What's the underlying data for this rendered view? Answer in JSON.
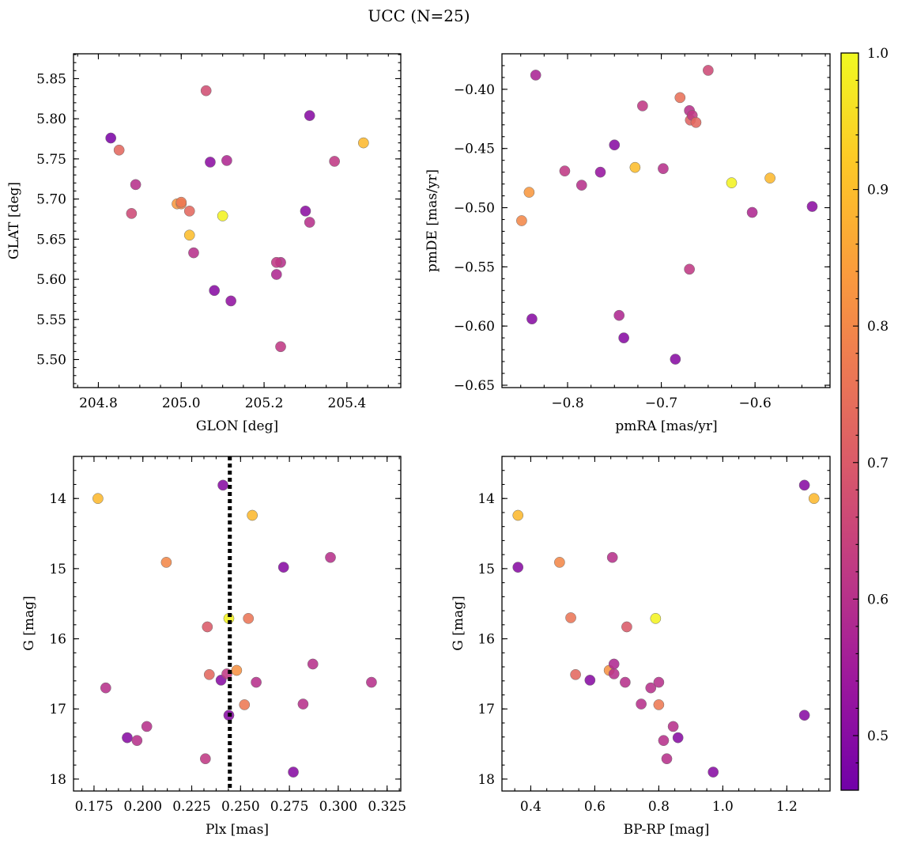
{
  "figure": {
    "title": "UCC (N=25)",
    "colorbar": {
      "range": [
        0.46,
        1.0
      ],
      "ticks": [
        0.5,
        0.6,
        0.7,
        0.8,
        0.9,
        1.0
      ],
      "tick_labels": [
        "0.5",
        "0.6",
        "0.7",
        "0.8",
        "0.9",
        "1.0"
      ],
      "colormap": "plasma",
      "colormap_stops": [
        "#0d0887",
        "#46039f",
        "#7201a8",
        "#9c179e",
        "#bd3786",
        "#d8576b",
        "#ed7953",
        "#fb9f3a",
        "#fdca26",
        "#f0f921"
      ],
      "color_clip": [
        0.22,
        1.0
      ]
    }
  },
  "chart_data": [
    {
      "type": "scatter",
      "xlabel": "GLON [deg]",
      "ylabel": "GLAT [deg]",
      "xlim": [
        204.74,
        205.53
      ],
      "ylim": [
        5.465,
        5.881
      ],
      "x_ticks": [
        204.8,
        205.0,
        205.2,
        205.4
      ],
      "x_tick_labels": [
        "204.8",
        "205.0",
        "205.2",
        "205.4"
      ],
      "y_ticks": [
        5.5,
        5.55,
        5.6,
        5.65,
        5.7,
        5.75,
        5.8,
        5.85
      ],
      "y_tick_labels": [
        "5.50",
        "5.55",
        "5.60",
        "5.65",
        "5.70",
        "5.75",
        "5.80",
        "5.85"
      ],
      "x": [
        204.83,
        204.85,
        204.89,
        204.88,
        204.99,
        205.0,
        205.02,
        205.02,
        205.03,
        205.06,
        205.07,
        205.08,
        205.1,
        205.11,
        205.12,
        205.23,
        205.24,
        205.23,
        205.24,
        205.3,
        205.31,
        205.31,
        205.37,
        205.44,
        205.0
      ],
      "y": [
        5.776,
        5.761,
        5.718,
        5.682,
        5.694,
        5.694,
        5.685,
        5.655,
        5.633,
        5.835,
        5.746,
        5.586,
        5.679,
        5.748,
        5.573,
        5.606,
        5.621,
        5.621,
        5.516,
        5.685,
        5.804,
        5.671,
        5.747,
        5.77,
        5.696
      ],
      "color": [
        0.48,
        0.73,
        0.6,
        0.66,
        0.83,
        0.8,
        0.73,
        0.9,
        0.6,
        0.67,
        0.51,
        0.5,
        0.99,
        0.58,
        0.52,
        0.58,
        0.6,
        0.62,
        0.62,
        0.51,
        0.5,
        0.6,
        0.62,
        0.89,
        0.77
      ]
    },
    {
      "type": "scatter",
      "xlabel": "pmRA [mas/yr]",
      "ylabel": "pmDE [mas/yr]",
      "xlim": [
        -0.87,
        -0.52
      ],
      "ylim": [
        -0.652,
        -0.37
      ],
      "x_ticks": [
        -0.8,
        -0.7,
        -0.6
      ],
      "x_tick_labels": [
        "−0.8",
        "−0.7",
        "−0.6"
      ],
      "y_ticks": [
        -0.65,
        -0.6,
        -0.55,
        -0.5,
        -0.45,
        -0.4
      ],
      "y_tick_labels": [
        "−0.65",
        "−0.60",
        "−0.55",
        "−0.50",
        "−0.45",
        "−0.40"
      ],
      "x": [
        -0.849,
        -0.841,
        -0.834,
        -0.838,
        -0.803,
        -0.785,
        -0.765,
        -0.75,
        -0.745,
        -0.74,
        -0.728,
        -0.72,
        -0.698,
        -0.685,
        -0.68,
        -0.67,
        -0.67,
        -0.669,
        -0.667,
        -0.663,
        -0.65,
        -0.625,
        -0.603,
        -0.584,
        -0.539
      ],
      "y": [
        -0.511,
        -0.487,
        -0.388,
        -0.594,
        -0.469,
        -0.481,
        -0.47,
        -0.447,
        -0.591,
        -0.61,
        -0.466,
        -0.414,
        -0.467,
        -0.628,
        -0.407,
        -0.552,
        -0.418,
        -0.426,
        -0.422,
        -0.428,
        -0.384,
        -0.479,
        -0.504,
        -0.475,
        -0.499
      ],
      "color": [
        0.8,
        0.83,
        0.57,
        0.5,
        0.62,
        0.6,
        0.53,
        0.5,
        0.58,
        0.5,
        0.9,
        0.62,
        0.6,
        0.5,
        0.75,
        0.62,
        0.6,
        0.72,
        0.62,
        0.73,
        0.66,
        0.99,
        0.58,
        0.89,
        0.51
      ]
    },
    {
      "type": "scatter",
      "xlabel": "Plx [mas]",
      "ylabel": "G [mag]",
      "xlim": [
        0.1645,
        0.332
      ],
      "ylim": [
        18.17,
        13.4
      ],
      "y_inverted": true,
      "x_ticks": [
        0.175,
        0.2,
        0.225,
        0.25,
        0.275,
        0.3,
        0.325
      ],
      "x_tick_labels": [
        "0.175",
        "0.200",
        "0.225",
        "0.250",
        "0.275",
        "0.300",
        "0.325"
      ],
      "y_ticks": [
        14,
        15,
        16,
        17,
        18
      ],
      "y_tick_labels": [
        "14",
        "15",
        "16",
        "17",
        "18"
      ],
      "vline": {
        "x": 0.2445,
        "style": "dotted",
        "color": "#000000"
      },
      "x": [
        0.177,
        0.181,
        0.192,
        0.197,
        0.202,
        0.212,
        0.232,
        0.233,
        0.234,
        0.24,
        0.241,
        0.243,
        0.244,
        0.244,
        0.248,
        0.252,
        0.254,
        0.256,
        0.258,
        0.272,
        0.277,
        0.282,
        0.287,
        0.296,
        0.317
      ],
      "y": [
        14.0,
        16.7,
        17.41,
        17.45,
        17.25,
        14.91,
        17.71,
        15.83,
        16.51,
        16.59,
        13.81,
        16.5,
        17.09,
        15.71,
        16.45,
        16.94,
        15.71,
        14.24,
        16.62,
        14.98,
        17.9,
        16.93,
        16.36,
        14.84,
        16.62
      ],
      "color": [
        0.89,
        0.6,
        0.5,
        0.6,
        0.6,
        0.8,
        0.62,
        0.7,
        0.73,
        0.5,
        0.5,
        0.62,
        0.5,
        0.99,
        0.82,
        0.77,
        0.76,
        0.89,
        0.6,
        0.5,
        0.5,
        0.6,
        0.6,
        0.6,
        0.6
      ]
    },
    {
      "type": "scatter",
      "xlabel": "BP-RP [mag]",
      "ylabel": "G [mag]",
      "xlim": [
        0.31,
        1.335
      ],
      "ylim": [
        18.17,
        13.4
      ],
      "y_inverted": true,
      "x_ticks": [
        0.4,
        0.6,
        0.8,
        1.0,
        1.2
      ],
      "x_tick_labels": [
        "0.4",
        "0.6",
        "0.8",
        "1.0",
        "1.2"
      ],
      "y_ticks": [
        14,
        15,
        16,
        17,
        18
      ],
      "y_tick_labels": [
        "14",
        "15",
        "16",
        "17",
        "18"
      ],
      "x": [
        0.36,
        0.36,
        0.49,
        0.525,
        0.54,
        0.585,
        0.645,
        0.655,
        0.66,
        0.66,
        0.695,
        0.7,
        0.745,
        0.775,
        0.79,
        0.8,
        0.8,
        0.815,
        0.825,
        0.845,
        0.86,
        0.97,
        1.255,
        1.255,
        1.285
      ],
      "y": [
        14.98,
        14.24,
        14.91,
        15.7,
        16.51,
        16.59,
        16.45,
        14.84,
        16.5,
        16.36,
        16.62,
        15.83,
        16.93,
        16.7,
        15.71,
        16.62,
        16.94,
        17.45,
        17.71,
        17.25,
        17.41,
        17.9,
        13.81,
        17.09,
        14.0
      ],
      "color": [
        0.5,
        0.89,
        0.8,
        0.76,
        0.73,
        0.5,
        0.82,
        0.6,
        0.6,
        0.58,
        0.6,
        0.7,
        0.6,
        0.6,
        0.99,
        0.6,
        0.77,
        0.6,
        0.6,
        0.6,
        0.5,
        0.5,
        0.5,
        0.5,
        0.89
      ]
    }
  ]
}
